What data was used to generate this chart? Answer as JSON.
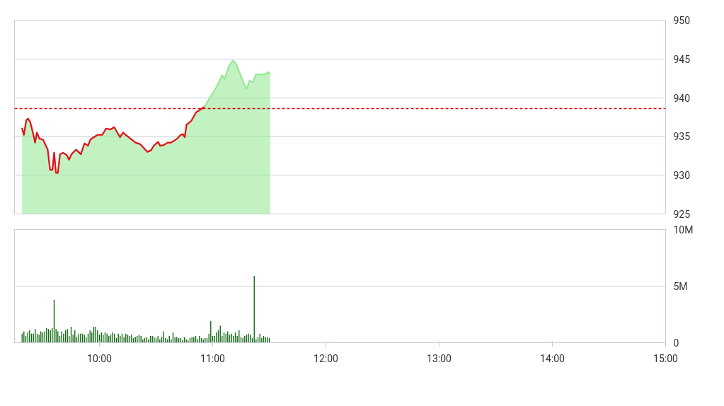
{
  "chart_data": [
    {
      "type": "line",
      "xlim": [
        9.25,
        15
      ],
      "ylim": [
        925,
        950
      ],
      "yticks": [
        925,
        930,
        935,
        940,
        945,
        950
      ],
      "grid": "y",
      "tick_labels": "y",
      "x": [
        9.316,
        9.333,
        9.354,
        9.369,
        9.39,
        9.417,
        9.432,
        9.448,
        9.47,
        9.501,
        9.543,
        9.564,
        9.585,
        9.6,
        9.616,
        9.633,
        9.652,
        9.679,
        9.711,
        9.731,
        9.753,
        9.794,
        9.836,
        9.868,
        9.899,
        9.92,
        9.983,
        10.025,
        10.057,
        10.099,
        10.13,
        10.182,
        10.208,
        10.241,
        10.319,
        10.36,
        10.423,
        10.455,
        10.48,
        10.518,
        10.535,
        10.57,
        10.602,
        10.633,
        10.686,
        10.717,
        10.738,
        10.753,
        10.769,
        10.811,
        10.853,
        10.895,
        10.926,
        10.979,
        11.031,
        11.084,
        11.105,
        11.147,
        11.178,
        11.21,
        11.235,
        11.269,
        11.298,
        11.325,
        11.357,
        11.382,
        11.43,
        11.461,
        11.486,
        11.508
      ],
      "series": [
        {
          "type": "area",
          "color": "#90e890",
          "values": [
            936.1,
            935.2,
            937.1,
            937.3,
            936.8,
            935.2,
            934.2,
            935.5,
            934.7,
            934.6,
            933.3,
            930.7,
            930.7,
            932.9,
            930.3,
            930.3,
            932.7,
            932.9,
            932.6,
            932.0,
            932.7,
            933.3,
            932.7,
            934.1,
            933.8,
            934.6,
            935.2,
            935.2,
            936.0,
            935.9,
            936.2,
            934.9,
            935.5,
            935.1,
            934.2,
            934.0,
            933.0,
            933.2,
            933.8,
            934.3,
            933.8,
            933.9,
            934.2,
            934.2,
            934.7,
            935.2,
            935.3,
            934.9,
            936.5,
            937.0,
            938.1,
            938.5,
            938.8,
            940.1,
            941.3,
            942.9,
            942.4,
            944.2,
            944.8,
            944.3,
            943.3,
            942.1,
            941.1,
            942.2,
            942.0,
            943.0,
            943.0,
            943.0,
            943.3,
            943.1
          ]
        },
        {
          "type": "line",
          "color": "#e8101a",
          "values": [
            936.1,
            935.2,
            937.1,
            937.3,
            936.8,
            935.2,
            934.2,
            935.5,
            934.7,
            934.6,
            933.3,
            930.7,
            930.7,
            932.9,
            930.3,
            930.3,
            932.7,
            932.9,
            932.6,
            932.0,
            932.7,
            933.3,
            932.7,
            934.1,
            933.8,
            934.6,
            935.2,
            935.2,
            936.0,
            935.9,
            936.2,
            934.9,
            935.5,
            935.1,
            934.2,
            934.0,
            933.0,
            933.2,
            933.8,
            934.3,
            933.8,
            933.9,
            934.2,
            934.2,
            934.7,
            935.2,
            935.3,
            934.9,
            936.5,
            937.0,
            938.1,
            938.5,
            938.8,
            null,
            null,
            null,
            null,
            null,
            null,
            null,
            null,
            null,
            null,
            null,
            null,
            null,
            null,
            null,
            null,
            null
          ]
        }
      ],
      "ref_lines": [
        {
          "axis": "y",
          "value": 938.6,
          "color": "#e00000",
          "line_style": "dashed"
        }
      ]
    },
    {
      "type": "bar",
      "xlim": [
        9.25,
        15
      ],
      "ylim": [
        0,
        10
      ],
      "yticks": [
        {
          "value": 0,
          "label": "0"
        },
        {
          "value": 5,
          "label": "5M"
        },
        {
          "value": 10,
          "label": "10M"
        }
      ],
      "xticks": [
        {
          "value": 10,
          "label": "10:00"
        },
        {
          "value": 11,
          "label": "11:00"
        },
        {
          "value": 12,
          "label": "12:00"
        },
        {
          "value": 13,
          "label": "13:00"
        },
        {
          "value": 14,
          "label": "14:00"
        },
        {
          "value": 15,
          "label": "15:00"
        }
      ],
      "grid": "y",
      "x": [
        9.317,
        9.333,
        9.35,
        9.367,
        9.383,
        9.4,
        9.417,
        9.433,
        9.45,
        9.467,
        9.483,
        9.5,
        9.517,
        9.533,
        9.55,
        9.567,
        9.583,
        9.6,
        9.617,
        9.633,
        9.65,
        9.667,
        9.683,
        9.7,
        9.717,
        9.733,
        9.75,
        9.767,
        9.783,
        9.8,
        9.817,
        9.833,
        9.85,
        9.867,
        9.883,
        9.9,
        9.917,
        9.933,
        9.95,
        9.967,
        9.983,
        10,
        10.017,
        10.033,
        10.05,
        10.067,
        10.083,
        10.1,
        10.117,
        10.133,
        10.15,
        10.167,
        10.183,
        10.2,
        10.217,
        10.233,
        10.25,
        10.267,
        10.283,
        10.3,
        10.317,
        10.333,
        10.35,
        10.367,
        10.383,
        10.4,
        10.417,
        10.433,
        10.45,
        10.467,
        10.483,
        10.5,
        10.517,
        10.533,
        10.55,
        10.567,
        10.583,
        10.6,
        10.617,
        10.633,
        10.65,
        10.667,
        10.683,
        10.7,
        10.717,
        10.733,
        10.75,
        10.767,
        10.783,
        10.8,
        10.817,
        10.833,
        10.85,
        10.867,
        10.883,
        10.9,
        10.917,
        10.933,
        10.95,
        10.967,
        10.983,
        11,
        11.017,
        11.033,
        11.05,
        11.067,
        11.083,
        11.1,
        11.117,
        11.133,
        11.15,
        11.167,
        11.183,
        11.2,
        11.217,
        11.233,
        11.25,
        11.267,
        11.283,
        11.3,
        11.317,
        11.333,
        11.35,
        11.367,
        11.383,
        11.4,
        11.417,
        11.433,
        11.45,
        11.467,
        11.483,
        11.5
      ],
      "series": [
        {
          "color": "#116611",
          "values": [
            0.8,
            1.0,
            0.6,
            0.9,
            1.1,
            0.8,
            0.8,
            1.2,
            0.8,
            0.7,
            1.0,
            0.9,
            1.0,
            1.3,
            1.2,
            1.1,
            1.3,
            3.8,
            1.2,
            1.0,
            0.6,
            1.0,
            0.8,
            1.1,
            1.2,
            0.6,
            1.4,
            0.7,
            1.1,
            0.5,
            0.8,
            0.8,
            0.8,
            0.7,
            0.5,
            0.8,
            1.1,
            0.9,
            1.4,
            1.4,
            1.1,
            0.7,
            0.9,
            0.7,
            0.9,
            0.8,
            0.6,
            0.7,
            0.9,
            0.8,
            0.4,
            0.8,
            0.6,
            0.8,
            0.5,
            0.8,
            0.7,
            0.6,
            0.7,
            0.4,
            0.5,
            0.6,
            0.7,
            0.6,
            0.3,
            0.4,
            0.5,
            0.3,
            0.6,
            0.6,
            0.5,
            0.4,
            0.6,
            0.3,
            0.5,
            1.0,
            0.4,
            0.3,
            0.6,
            0.3,
            0.9,
            0.5,
            0.5,
            0.4,
            0.4,
            0.2,
            0.5,
            0.3,
            0.2,
            0.4,
            0.5,
            0.5,
            0.6,
            0.3,
            0.6,
            0.4,
            0.3,
            0.4,
            0.4,
            0.8,
            1.9,
            0.6,
            0.6,
            0.9,
            1.1,
            1.5,
            0.6,
            0.9,
            0.8,
            1.0,
            0.7,
            0.8,
            0.6,
            0.9,
            0.6,
            1.1,
            0.5,
            0.4,
            0.6,
            0.7,
            0.8,
            0.7,
            0.4,
            5.9,
            0.3,
            0.5,
            0.8,
            0.4,
            0.6,
            0.5,
            0.5,
            0.4
          ]
        }
      ]
    }
  ]
}
